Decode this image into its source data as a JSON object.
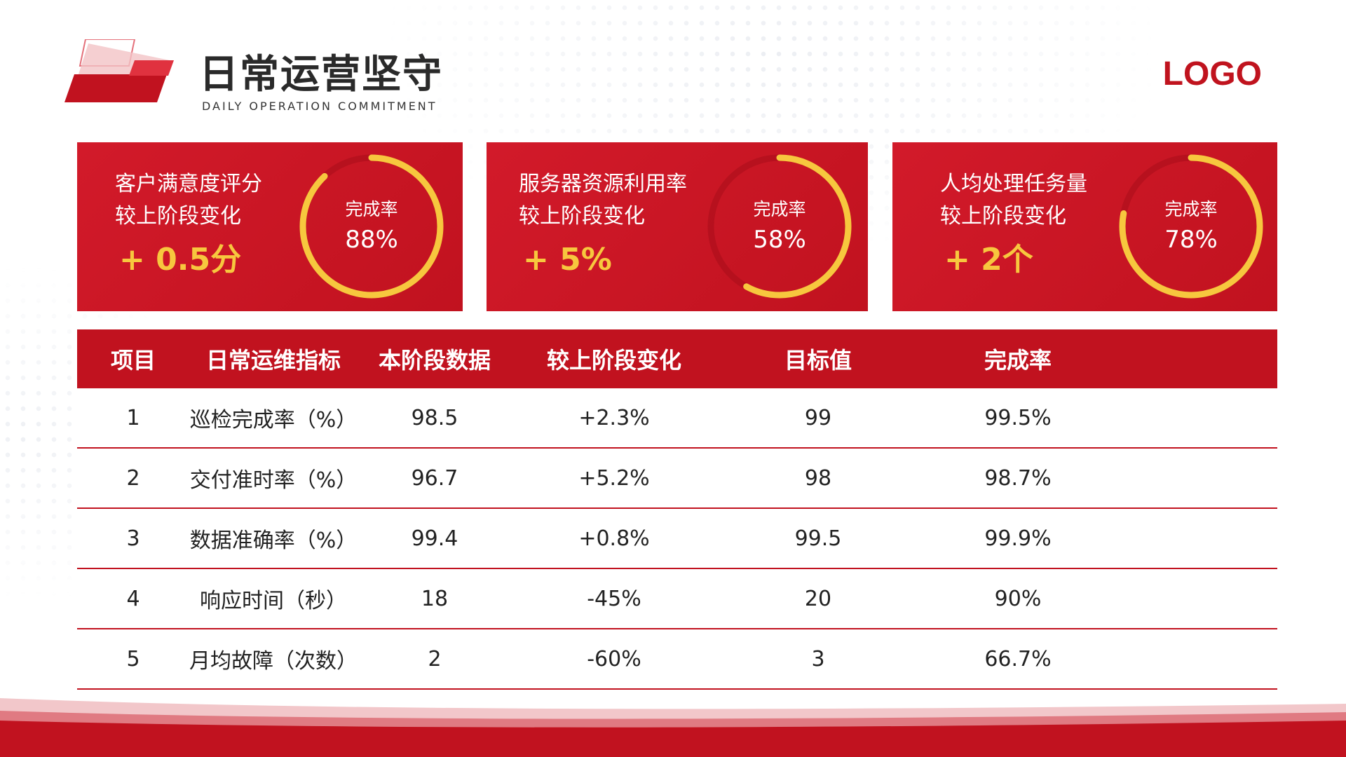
{
  "header": {
    "title": "日常运营坚守",
    "subtitle": "DAILY OPERATION COMMITMENT",
    "logo": "LOGO"
  },
  "cards": [
    {
      "line1": "客户满意度评分",
      "line2": "较上阶段变化",
      "delta": "+ 0.5分",
      "ring_label": "完成率",
      "ring_value": "88%",
      "progress": 0.88
    },
    {
      "line1": "服务器资源利用率",
      "line2": "较上阶段变化",
      "delta": "+ 5%",
      "ring_label": "完成率",
      "ring_value": "58%",
      "progress": 0.58
    },
    {
      "line1": "人均处理任务量",
      "line2": "较上阶段变化",
      "delta": "+ 2个",
      "ring_label": "完成率",
      "ring_value": "78%",
      "progress": 0.78
    }
  ],
  "colors": {
    "primary": "#c1121f",
    "accent": "#f7c73e"
  },
  "table": {
    "headers": [
      "项目",
      "日常运维指标",
      "本阶段数据",
      "较上阶段变化",
      "目标值",
      "完成率"
    ],
    "rows": [
      [
        "1",
        "巡检完成率（%）",
        "98.5",
        "+2.3%",
        "99",
        "99.5%"
      ],
      [
        "2",
        "交付准时率（%）",
        "96.7",
        "+5.2%",
        "98",
        "98.7%"
      ],
      [
        "3",
        "数据准确率（%）",
        "99.4",
        "+0.8%",
        "99.5",
        "99.9%"
      ],
      [
        "4",
        "响应时间（秒）",
        "18",
        "-45%",
        "20",
        "90%"
      ],
      [
        "5",
        "月均故障（次数）",
        "2",
        "-60%",
        "3",
        "66.7%"
      ]
    ]
  }
}
